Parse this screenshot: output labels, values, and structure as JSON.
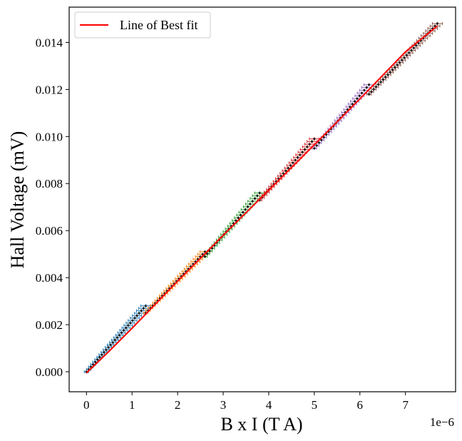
{
  "chart_data": {
    "type": "scatter",
    "xlabel": "B x I (T A)",
    "ylabel": "Hall Voltage (mV)",
    "x_offset_label": "1e−6",
    "xlim": [
      -3.8e-07,
      8.1e-06
    ],
    "ylim": [
      -0.00085,
      0.0155
    ],
    "x_ticks": [
      0,
      1e-06,
      2e-06,
      3e-06,
      4e-06,
      5e-06,
      6e-06,
      7e-06
    ],
    "x_tick_labels": [
      "0",
      "1",
      "2",
      "3",
      "4",
      "5",
      "6",
      "7"
    ],
    "y_ticks": [
      0,
      0.002,
      0.004,
      0.006,
      0.008,
      0.01,
      0.012,
      0.014
    ],
    "y_tick_labels": [
      "0.000",
      "0.002",
      "0.004",
      "0.006",
      "0.008",
      "0.010",
      "0.012",
      "0.014"
    ],
    "grid": false,
    "legend": {
      "position": "top-left",
      "entries": [
        "Line of Best fit"
      ]
    },
    "fit_line": {
      "name": "Line of Best fit",
      "color": "#ff0000",
      "x": [
        0,
        5e-07,
        1e-06,
        2e-06,
        3e-06,
        4e-06,
        5e-06,
        6e-06,
        7e-06,
        7.7e-06
      ],
      "y": [
        -5e-05,
        0.00088,
        0.00185,
        0.00385,
        0.0058,
        0.00772,
        0.00965,
        0.0116,
        0.0136,
        0.0147
      ]
    },
    "series": [
      {
        "color": "#1f77b4",
        "x_range": [
          0,
          1.3e-06
        ],
        "y_range": [
          0,
          0.0028
        ],
        "n": 28
      },
      {
        "color": "#ff7f0e",
        "x_range": [
          1.3e-06,
          2.6e-06
        ],
        "y_range": [
          0.0025,
          0.0051
        ],
        "n": 26
      },
      {
        "color": "#2ca02c",
        "x_range": [
          2.6e-06,
          3.8e-06
        ],
        "y_range": [
          0.0049,
          0.0076
        ],
        "n": 24
      },
      {
        "color": "#d62728",
        "x_range": [
          3.8e-06,
          5e-06
        ],
        "y_range": [
          0.0073,
          0.0099
        ],
        "n": 24
      },
      {
        "color": "#9467bd",
        "x_range": [
          5e-06,
          6.2e-06
        ],
        "y_range": [
          0.0095,
          0.0122
        ],
        "n": 24
      },
      {
        "color": "#8c564b",
        "x_range": [
          6.2e-06,
          7.7e-06
        ],
        "y_range": [
          0.0118,
          0.0148
        ],
        "n": 30
      }
    ]
  }
}
